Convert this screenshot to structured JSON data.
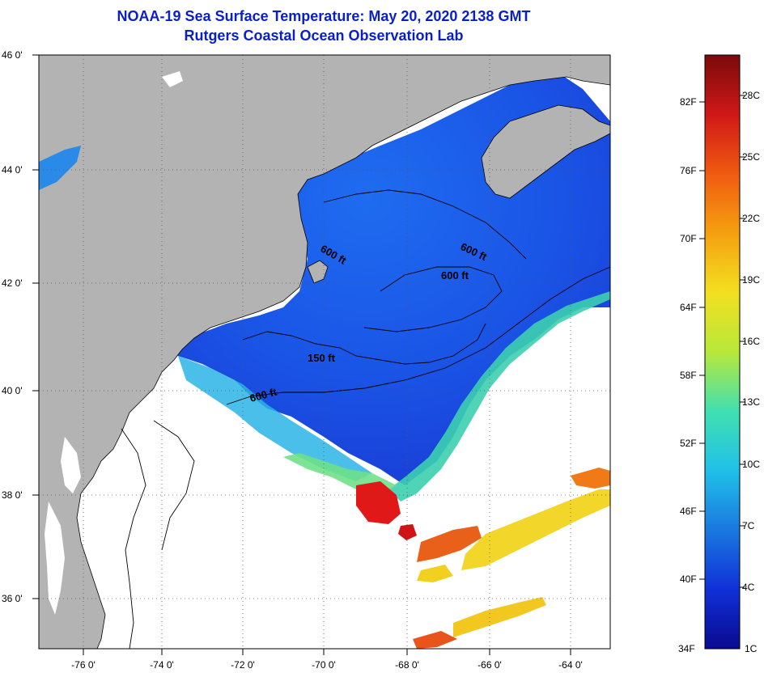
{
  "title": "NOAA-19 Sea Surface Temperature:  May 20, 2020 2138 GMT",
  "subtitle": "Rutgers Coastal Ocean Observation Lab",
  "lat_labels": [
    "46 0'",
    "44 0'",
    "42 0'",
    "40 0'",
    "38 0'",
    "36 0'"
  ],
  "lon_labels": [
    "-76 0'",
    "-74 0'",
    "-72 0'",
    "-70 0'",
    "-68 0'",
    "-66 0'",
    "-64 0'"
  ],
  "contours": [
    "600 ft",
    "600 ft",
    "600 ft",
    "150 ft",
    "600 ft"
  ],
  "colorbar": {
    "fahrenheit": [
      "82F",
      "76F",
      "70F",
      "64F",
      "58F",
      "52F",
      "46F",
      "40F",
      "34F"
    ],
    "celsius": [
      "28C",
      "25C",
      "22C",
      "19C",
      "16C",
      "13C",
      "10C",
      "7C",
      "4C",
      "1C"
    ],
    "colors": [
      "#7a0a0a",
      "#d01818",
      "#f05a10",
      "#f5a010",
      "#f2e020",
      "#b8e83a",
      "#40e0b0",
      "#20c0e8",
      "#1a78e0",
      "#1030d8",
      "#0a0a90"
    ]
  },
  "colors": {
    "land": "#b3b3b3",
    "ocean_cold": "#1848e0",
    "ocean_mid": "#2a8ae8",
    "title": "#0a1fc8"
  }
}
